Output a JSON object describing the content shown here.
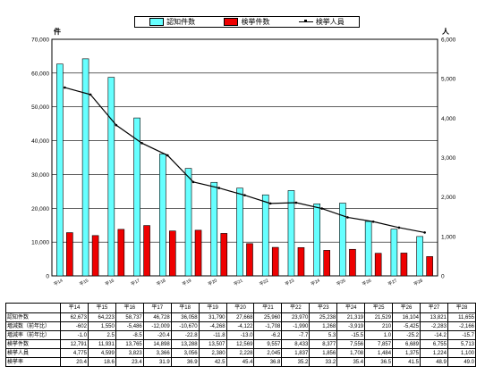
{
  "legend": {
    "recognized": "認知件数",
    "arrested_cases": "検挙件数",
    "arrested_persons": "検挙人員"
  },
  "units": {
    "left": "件",
    "right": "人"
  },
  "colors": {
    "recognized": "#66ffff",
    "arrested": "#ee0000",
    "line": "#000000"
  },
  "chart_data": {
    "type": "bar",
    "categories": [
      "平14",
      "平15",
      "平16",
      "平17",
      "平18",
      "平19",
      "平20",
      "平21",
      "平22",
      "平23",
      "平24",
      "平25",
      "平26",
      "平27",
      "平28"
    ],
    "series": [
      {
        "name": "認知件数",
        "type": "bar",
        "axis": "left",
        "values": [
          62673,
          64223,
          58737,
          46728,
          36058,
          31790,
          27668,
          25960,
          23970,
          25238,
          21319,
          21529,
          16104,
          13821,
          11655
        ]
      },
      {
        "name": "検挙件数",
        "type": "bar",
        "axis": "left",
        "values": [
          12791,
          11931,
          13765,
          14898,
          13288,
          13507,
          12569,
          9557,
          8433,
          8377,
          7556,
          7857,
          6689,
          6755,
          5713
        ]
      },
      {
        "name": "検挙人員",
        "type": "line",
        "axis": "right",
        "values": [
          4775,
          4599,
          3823,
          3366,
          3056,
          2380,
          2228,
          2045,
          1837,
          1856,
          1708,
          1484,
          1375,
          1224,
          1100
        ]
      }
    ],
    "y_left": {
      "lim": [
        0,
        70000
      ],
      "ticks": [
        "0",
        "10,000",
        "20,000",
        "30,000",
        "40,000",
        "50,000",
        "60,000",
        "70,000"
      ]
    },
    "y_right": {
      "lim": [
        0,
        6000
      ],
      "ticks": [
        "0",
        "1,000",
        "2,000",
        "3,000",
        "4,000",
        "5,000",
        "6,000"
      ]
    },
    "grid": true
  },
  "table": {
    "columns": [
      "平14",
      "平15",
      "平16",
      "平17",
      "平18",
      "平19",
      "平20",
      "平21",
      "平22",
      "平23",
      "平24",
      "平25",
      "平26",
      "平27",
      "平28"
    ],
    "rows": [
      {
        "label": "認知件数",
        "values": [
          "62,673",
          "64,223",
          "58,737",
          "46,728",
          "36,058",
          "31,790",
          "27,668",
          "25,960",
          "23,970",
          "25,238",
          "21,319",
          "21,529",
          "16,104",
          "13,821",
          "11,655"
        ]
      },
      {
        "label": "増減数（前年比）",
        "values": [
          "-602",
          "1,550",
          "-5,486",
          "-12,009",
          "-10,670",
          "-4,268",
          "-4,122",
          "-1,708",
          "-1,990",
          "1,268",
          "-3,919",
          "210",
          "-5,425",
          "-2,283",
          "-2,166"
        ]
      },
      {
        "label": "増減率（前年比）",
        "values": [
          "-1.0",
          "2.5",
          "-8.5",
          "-20.4",
          "-22.8",
          "-11.8",
          "-13.0",
          "-6.2",
          "-7.7",
          "5.3",
          "-15.5",
          "1.0",
          "-25.2",
          "-14.2",
          "-15.7"
        ]
      },
      {
        "label": "検挙件数",
        "values": [
          "12,791",
          "11,931",
          "13,765",
          "14,898",
          "13,288",
          "13,507",
          "12,569",
          "9,557",
          "8,433",
          "8,377",
          "7,556",
          "7,857",
          "6,689",
          "6,755",
          "5,713"
        ]
      },
      {
        "label": "検挙人員",
        "values": [
          "4,775",
          "4,599",
          "3,823",
          "3,366",
          "3,056",
          "2,380",
          "2,228",
          "2,045",
          "1,837",
          "1,856",
          "1,708",
          "1,484",
          "1,375",
          "1,224",
          "1,100"
        ]
      },
      {
        "label": "検挙率",
        "values": [
          "20.4",
          "18.6",
          "23.4",
          "31.9",
          "36.9",
          "42.5",
          "45.4",
          "36.8",
          "35.2",
          "33.2",
          "35.4",
          "36.5",
          "41.5",
          "48.9",
          "49.0"
        ]
      }
    ]
  }
}
